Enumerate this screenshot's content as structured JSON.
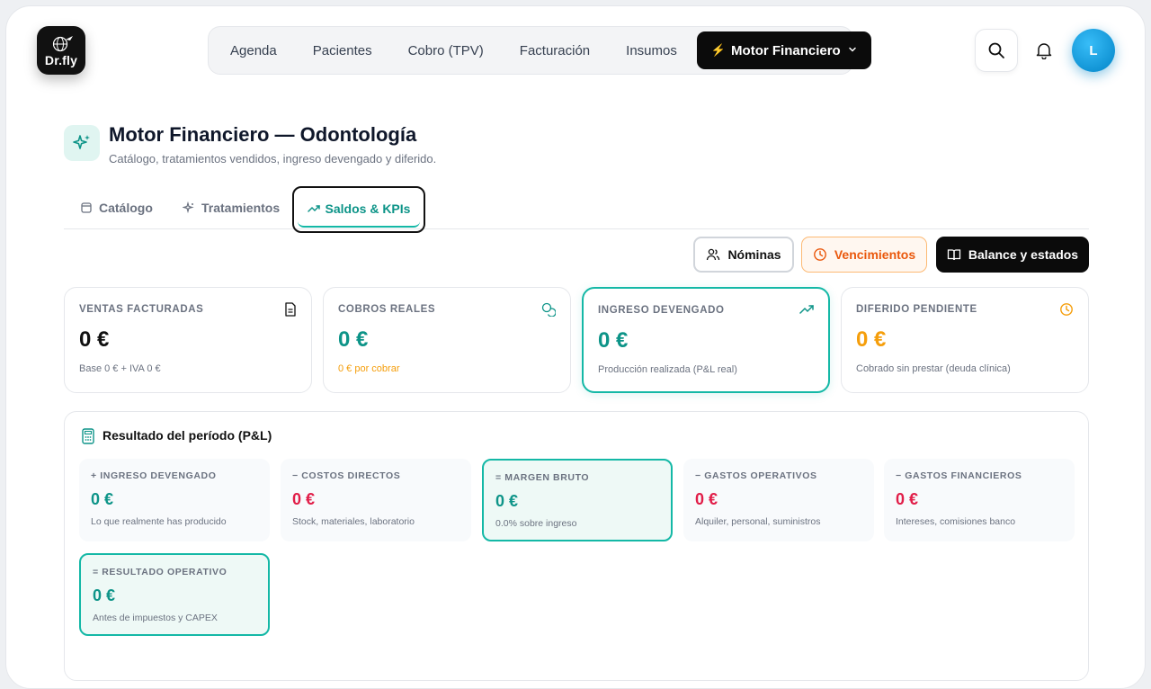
{
  "brand": {
    "name": "Dr.fly"
  },
  "nav": {
    "items": [
      "Agenda",
      "Pacientes",
      "Cobro (TPV)",
      "Facturación",
      "Insumos"
    ],
    "active_label": "Motor Financiero"
  },
  "user": {
    "initial": "L"
  },
  "header": {
    "title": "Motor Financiero — Odontología",
    "subtitle": "Catálogo, tratamientos vendidos, ingreso devengado y diferido."
  },
  "tabs": {
    "catalogo": "Catálogo",
    "tratamientos": "Tratamientos",
    "saldos": "Saldos & KPIs"
  },
  "actions": {
    "nominas": "Nóminas",
    "vencimientos": "Vencimientos",
    "balance": "Balance y estados"
  },
  "kpis": [
    {
      "label": "Ventas facturadas",
      "value": "0 €",
      "note": "Base 0 € + IVA 0 €",
      "icon": "document-icon"
    },
    {
      "label": "Cobros reales",
      "value": "0 €",
      "note": "0 € por cobrar",
      "icon": "coins-icon"
    },
    {
      "label": "Ingreso devengado",
      "value": "0 €",
      "note": "Producción realizada (P&L real)",
      "icon": "trending-up-icon"
    },
    {
      "label": "Diferido pendiente",
      "value": "0 €",
      "note": "Cobrado sin prestar (deuda clínica)",
      "icon": "clock-icon"
    }
  ],
  "pl": {
    "title": "Resultado del período (P&L)",
    "cards": [
      {
        "label": "+ Ingreso devengado",
        "value": "0 €",
        "note": "Lo que realmente has producido"
      },
      {
        "label": "− Costos directos",
        "value": "0 €",
        "note": "Stock, materiales, laboratorio"
      },
      {
        "label": "= Margen bruto",
        "value": "0 €",
        "note": "0.0% sobre ingreso"
      },
      {
        "label": "− Gastos operativos",
        "value": "0 €",
        "note": "Alquiler, personal, suministros"
      },
      {
        "label": "− Gastos financieros",
        "value": "0 €",
        "note": "Intereses, comisiones banco"
      },
      {
        "label": "= Resultado operativo",
        "value": "0 €",
        "note": "Antes de impuestos y CAPEX"
      }
    ]
  },
  "colors": {
    "accent": "#14b8a6",
    "negative": "#e11d48",
    "warning": "#f59e0b",
    "dark": "#0b0b0b"
  }
}
